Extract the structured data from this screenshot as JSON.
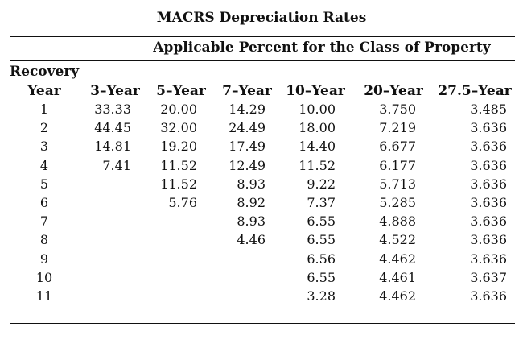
{
  "title": "MACRS Depreciation Rates",
  "subheader": "Applicable Percent for the Class of Property",
  "recovery_label": "Recovery",
  "columns": [
    "Year",
    "3–Year",
    "5–Year",
    "7–Year",
    "10–Year",
    "20–Year",
    "27.5–Year"
  ],
  "rows": [
    {
      "year": "1",
      "values": [
        "33.33",
        "20.00",
        "14.29",
        "10.00",
        "3.750",
        "3.485"
      ]
    },
    {
      "year": "2",
      "values": [
        "44.45",
        "32.00",
        "24.49",
        "18.00",
        "7.219",
        "3.636"
      ]
    },
    {
      "year": "3",
      "values": [
        "14.81",
        "19.20",
        "17.49",
        "14.40",
        "6.677",
        "3.636"
      ]
    },
    {
      "year": "4",
      "values": [
        "7.41",
        "11.52",
        "12.49",
        "11.52",
        "6.177",
        "3.636"
      ]
    },
    {
      "year": "5",
      "values": [
        "",
        "11.52",
        "8.93",
        "9.22",
        "5.713",
        "3.636"
      ]
    },
    {
      "year": "6",
      "values": [
        "",
        "5.76",
        "8.92",
        "7.37",
        "5.285",
        "3.636"
      ]
    },
    {
      "year": "7",
      "values": [
        "",
        "",
        "8.93",
        "6.55",
        "4.888",
        "3.636"
      ]
    },
    {
      "year": "8",
      "values": [
        "",
        "",
        "4.46",
        "6.55",
        "4.522",
        "3.636"
      ]
    },
    {
      "year": "9",
      "values": [
        "",
        "",
        "",
        "6.56",
        "4.462",
        "3.636"
      ]
    },
    {
      "year": "10",
      "values": [
        "",
        "",
        "",
        "6.55",
        "4.461",
        "3.637"
      ]
    },
    {
      "year": "11",
      "values": [
        "",
        "",
        "",
        "3.28",
        "4.462",
        "3.636"
      ]
    }
  ]
}
